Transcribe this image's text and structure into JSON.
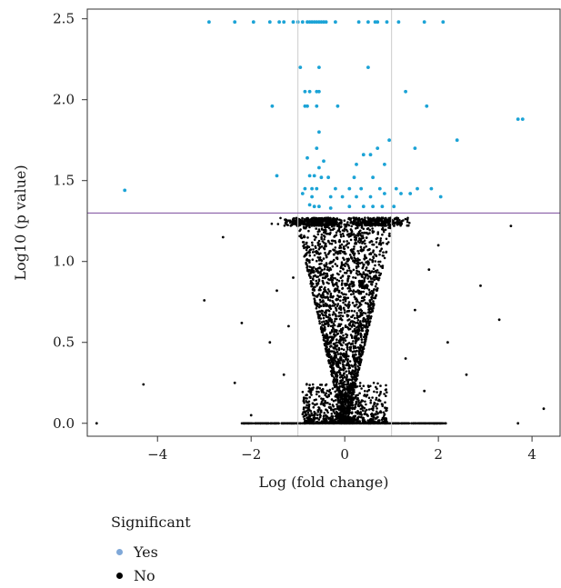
{
  "chart_data": {
    "type": "scatter",
    "title": "",
    "xlabel": "Log (fold change)",
    "ylabel": "Log10 (p value)",
    "xlim": [
      -5.5,
      4.6
    ],
    "ylim": [
      -0.08,
      2.56
    ],
    "xticks": [
      -4,
      -2,
      0,
      2,
      4
    ],
    "xtick_labels": [
      "−4",
      "−2",
      "0",
      "2",
      "4"
    ],
    "yticks": [
      0.0,
      0.5,
      1.0,
      1.5,
      2.0,
      2.5
    ],
    "ytick_labels": [
      "0.0",
      "0.5",
      "1.0",
      "1.5",
      "2.0",
      "2.5"
    ],
    "vlines": [
      -1,
      1
    ],
    "hline": 1.3,
    "grid": false,
    "legend_placement": "bottom-left",
    "colors": {
      "significant": "#1ba3d6",
      "not_significant": "#000000",
      "threshold": "#7a4a9c",
      "vlines": "#cccccc",
      "legend_yes": "#7fa8d8"
    },
    "series": [
      {
        "name": "Yes",
        "points": [
          [
            -2.9,
            2.48
          ],
          [
            -2.35,
            2.48
          ],
          [
            -1.95,
            2.48
          ],
          [
            -1.6,
            2.48
          ],
          [
            -1.4,
            2.48
          ],
          [
            -1.3,
            2.48
          ],
          [
            -1.1,
            2.48
          ],
          [
            -1.0,
            2.48
          ],
          [
            -0.9,
            2.48
          ],
          [
            -0.8,
            2.48
          ],
          [
            -0.75,
            2.48
          ],
          [
            -0.7,
            2.48
          ],
          [
            -0.65,
            2.48
          ],
          [
            -0.6,
            2.48
          ],
          [
            -0.55,
            2.48
          ],
          [
            -0.5,
            2.48
          ],
          [
            -0.45,
            2.48
          ],
          [
            -0.4,
            2.48
          ],
          [
            -0.2,
            2.48
          ],
          [
            0.3,
            2.48
          ],
          [
            0.5,
            2.48
          ],
          [
            0.65,
            2.48
          ],
          [
            0.7,
            2.48
          ],
          [
            0.9,
            2.48
          ],
          [
            1.15,
            2.48
          ],
          [
            1.7,
            2.48
          ],
          [
            2.1,
            2.48
          ],
          [
            -0.95,
            2.2
          ],
          [
            -0.55,
            2.2
          ],
          [
            0.5,
            2.2
          ],
          [
            -0.85,
            2.05
          ],
          [
            -0.75,
            2.05
          ],
          [
            -0.6,
            2.05
          ],
          [
            -0.55,
            2.05
          ],
          [
            1.3,
            2.05
          ],
          [
            -1.55,
            1.96
          ],
          [
            -0.85,
            1.96
          ],
          [
            -0.8,
            1.96
          ],
          [
            -0.6,
            1.96
          ],
          [
            -0.15,
            1.96
          ],
          [
            1.75,
            1.96
          ],
          [
            -0.55,
            1.8
          ],
          [
            0.95,
            1.75
          ],
          [
            2.4,
            1.75
          ],
          [
            3.7,
            1.88
          ],
          [
            3.8,
            1.88
          ],
          [
            -0.6,
            1.7
          ],
          [
            0.7,
            1.7
          ],
          [
            1.5,
            1.7
          ],
          [
            0.4,
            1.66
          ],
          [
            0.55,
            1.66
          ],
          [
            -0.8,
            1.64
          ],
          [
            -0.45,
            1.62
          ],
          [
            -0.55,
            1.58
          ],
          [
            0.25,
            1.6
          ],
          [
            0.85,
            1.6
          ],
          [
            -1.45,
            1.53
          ],
          [
            -0.75,
            1.53
          ],
          [
            -0.65,
            1.53
          ],
          [
            -0.5,
            1.52
          ],
          [
            -0.35,
            1.52
          ],
          [
            0.2,
            1.52
          ],
          [
            0.6,
            1.52
          ],
          [
            -4.7,
            1.44
          ],
          [
            -0.85,
            1.45
          ],
          [
            -0.7,
            1.45
          ],
          [
            -0.6,
            1.45
          ],
          [
            -0.2,
            1.45
          ],
          [
            0.1,
            1.45
          ],
          [
            0.35,
            1.45
          ],
          [
            0.75,
            1.45
          ],
          [
            1.1,
            1.45
          ],
          [
            1.55,
            1.45
          ],
          [
            1.85,
            1.45
          ],
          [
            -0.9,
            1.42
          ],
          [
            -0.7,
            1.4
          ],
          [
            -0.3,
            1.4
          ],
          [
            -0.05,
            1.4
          ],
          [
            0.25,
            1.4
          ],
          [
            0.55,
            1.4
          ],
          [
            0.85,
            1.42
          ],
          [
            1.2,
            1.42
          ],
          [
            1.4,
            1.42
          ],
          [
            2.05,
            1.4
          ],
          [
            -0.75,
            1.35
          ],
          [
            -0.65,
            1.34
          ],
          [
            -0.55,
            1.34
          ],
          [
            -0.3,
            1.33
          ],
          [
            0.1,
            1.34
          ],
          [
            0.4,
            1.34
          ],
          [
            0.6,
            1.34
          ],
          [
            0.8,
            1.34
          ],
          [
            1.05,
            1.34
          ]
        ]
      },
      {
        "name": "No",
        "points": [
          [
            -5.3,
            0.0
          ],
          [
            -4.3,
            0.24
          ],
          [
            -3.0,
            0.76
          ],
          [
            -2.6,
            1.15
          ],
          [
            -2.35,
            0.25
          ],
          [
            -2.0,
            0.05
          ],
          [
            -1.6,
            0.5
          ],
          [
            -1.45,
            0.82
          ],
          [
            3.55,
            1.22
          ],
          [
            3.3,
            0.64
          ],
          [
            3.7,
            0.0
          ],
          [
            4.25,
            0.09
          ],
          [
            -1.3,
            0.3
          ],
          [
            -1.2,
            0.6
          ],
          [
            -1.1,
            0.9
          ],
          [
            1.3,
            0.4
          ],
          [
            1.5,
            0.7
          ],
          [
            1.7,
            0.2
          ],
          [
            2.2,
            0.5
          ],
          [
            2.6,
            0.3
          ],
          [
            2.9,
            0.85
          ],
          [
            -2.2,
            0.62
          ],
          [
            2.0,
            1.1
          ],
          [
            1.8,
            0.95
          ]
        ],
        "dense_cloud": true
      }
    ],
    "legend": {
      "title": "Significant",
      "items": [
        "Yes",
        "No"
      ]
    }
  }
}
